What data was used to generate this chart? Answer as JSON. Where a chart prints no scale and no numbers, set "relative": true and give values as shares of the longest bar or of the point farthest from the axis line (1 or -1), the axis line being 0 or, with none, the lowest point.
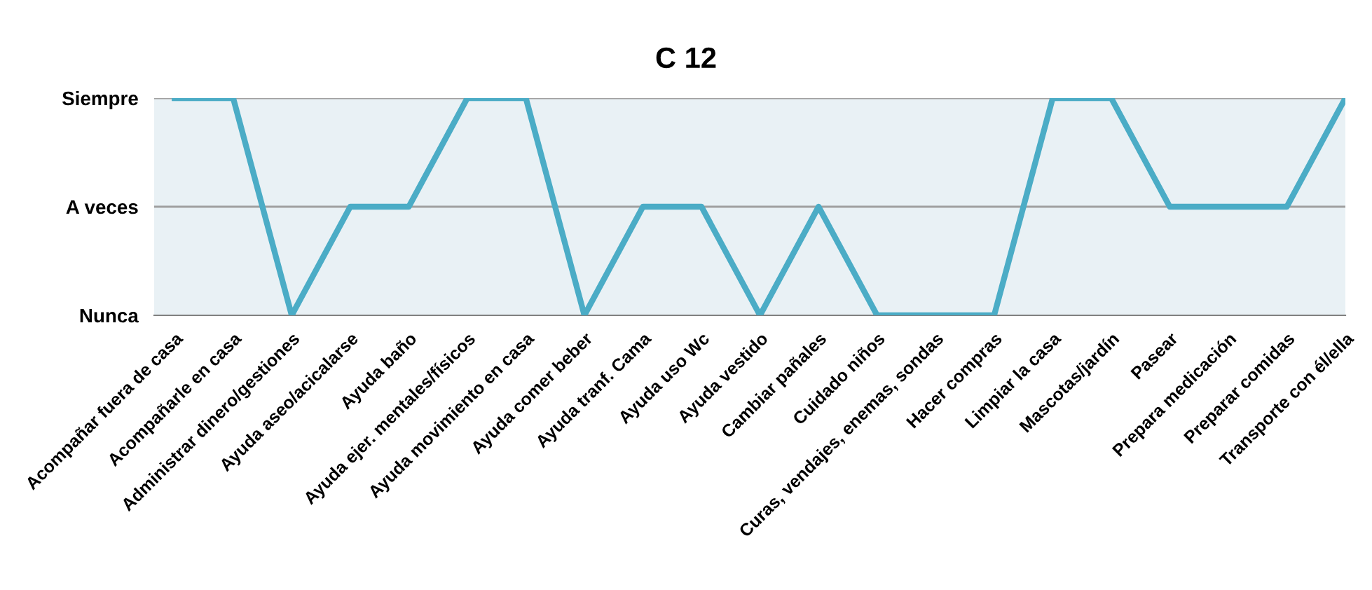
{
  "chart_data": {
    "type": "line",
    "title": "C 12",
    "categories": [
      "Acompañar fuera de casa",
      "Acompañarle en casa",
      "Administrar dinero/gestiones",
      "Ayuda aseo/acicalarse",
      "Ayuda baño",
      "Ayuda ejer. mentales/físicos",
      "Ayuda movimiento en casa",
      "Ayuda comer beber",
      "Ayuda tranf. Cama",
      "Ayuda uso Wc",
      "Ayuda vestido",
      "Cambiar pañales",
      "Cuidado niños",
      "Curas, vendajes, enemas, sondas",
      "Hacer compras",
      "Limpiar la casa",
      "Mascotas/jardín",
      "Pasear",
      "Prepara medicación",
      "Preparar comidas",
      "Transporte con él/ella"
    ],
    "y_categories": [
      "Siempre",
      "A veces",
      "Nunca"
    ],
    "relative": true,
    "series": [
      {
        "color": "#4bacc6",
        "values": [
          1,
          1,
          0,
          0.5,
          0.5,
          1,
          1,
          0,
          0.5,
          0.5,
          0,
          0.5,
          0,
          0,
          0,
          1,
          1,
          0.5,
          0.5,
          0.5,
          1
        ]
      }
    ],
    "ref_lines": [
      {
        "axis": "y",
        "value": 0.5,
        "color": "#a0a0a0"
      },
      {
        "axis": "y",
        "value": 1,
        "color": "#a0a0a0"
      }
    ],
    "marker": "none",
    "line_style": "solid"
  }
}
